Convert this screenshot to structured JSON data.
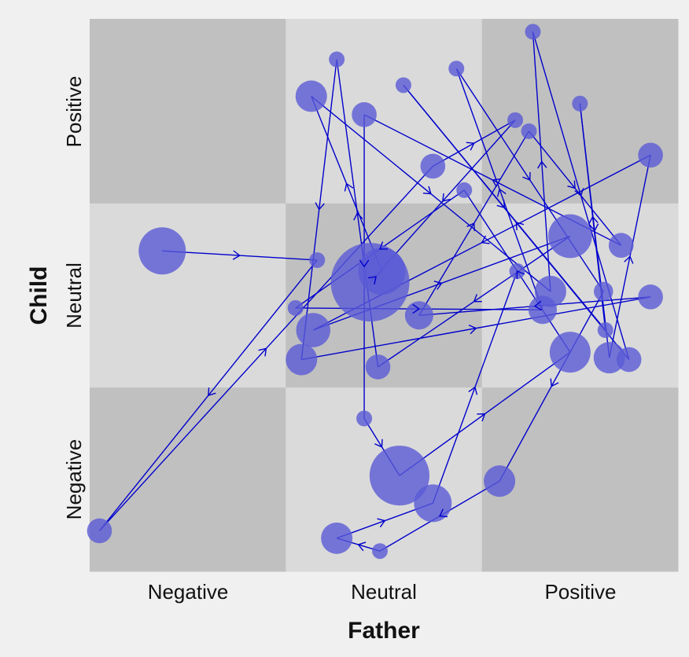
{
  "chart_data": {
    "type": "scatter",
    "subtype": "state-space-grid trajectory",
    "xlabel": "Father",
    "ylabel": "Child",
    "x_categories": [
      "Negative",
      "Neutral",
      "Positive"
    ],
    "y_categories": [
      "Negative",
      "Neutral",
      "Positive"
    ],
    "xlim": [
      0,
      3
    ],
    "ylim": [
      0,
      3
    ],
    "grid": "checkerboard cells",
    "colors": {
      "cell_dark": "#c0c0c0",
      "cell_light": "#dadada",
      "node": "#5a5ad6",
      "line": "#0000cc",
      "background": "#f0f0f0"
    },
    "points": [
      {
        "x": 0.37,
        "y": 1.74,
        "size": 36
      },
      {
        "x": 1.16,
        "y": 1.69,
        "size": 4
      },
      {
        "x": 0.05,
        "y": 0.22,
        "size": 10
      },
      {
        "x": 1.75,
        "y": 2.2,
        "size": 10
      },
      {
        "x": 2.17,
        "y": 2.45,
        "size": 4
      },
      {
        "x": 1.43,
        "y": 1.57,
        "size": 100
      },
      {
        "x": 1.49,
        "y": 1.63,
        "size": 36
      },
      {
        "x": 1.13,
        "y": 2.58,
        "size": 16
      },
      {
        "x": 2.35,
        "y": 1.52,
        "size": 16
      },
      {
        "x": 2.26,
        "y": 2.93,
        "size": 4
      },
      {
        "x": 2.75,
        "y": 1.15,
        "size": 10
      },
      {
        "x": 1.6,
        "y": 2.64,
        "size": 4
      },
      {
        "x": 2.63,
        "y": 1.31,
        "size": 4
      },
      {
        "x": 2.5,
        "y": 2.54,
        "size": 4
      },
      {
        "x": 2.65,
        "y": 1.16,
        "size": 16
      },
      {
        "x": 2.86,
        "y": 2.26,
        "size": 10
      },
      {
        "x": 1.14,
        "y": 1.31,
        "size": 19
      },
      {
        "x": 2.45,
        "y": 1.82,
        "size": 31
      },
      {
        "x": 1.47,
        "y": 1.11,
        "size": 10
      },
      {
        "x": 1.26,
        "y": 2.78,
        "size": 4
      },
      {
        "x": 1.08,
        "y": 1.15,
        "size": 16
      },
      {
        "x": 2.86,
        "y": 1.49,
        "size": 10
      },
      {
        "x": 1.68,
        "y": 1.39,
        "size": 13
      },
      {
        "x": 2.24,
        "y": 2.39,
        "size": 4
      },
      {
        "x": 2.71,
        "y": 1.77,
        "size": 10
      },
      {
        "x": 1.4,
        "y": 2.48,
        "size": 10
      },
      {
        "x": 1.4,
        "y": 0.83,
        "size": 4
      },
      {
        "x": 1.58,
        "y": 0.52,
        "size": 58
      },
      {
        "x": 2.45,
        "y": 1.19,
        "size": 27
      },
      {
        "x": 1.91,
        "y": 2.07,
        "size": 4
      },
      {
        "x": 1.05,
        "y": 1.43,
        "size": 4
      },
      {
        "x": 2.31,
        "y": 1.42,
        "size": 13
      },
      {
        "x": 1.87,
        "y": 2.73,
        "size": 4
      },
      {
        "x": 2.62,
        "y": 1.52,
        "size": 6
      },
      {
        "x": 2.09,
        "y": 0.49,
        "size": 16
      },
      {
        "x": 1.48,
        "y": 0.11,
        "size": 4
      },
      {
        "x": 1.26,
        "y": 0.18,
        "size": 16
      },
      {
        "x": 1.75,
        "y": 0.37,
        "size": 23
      },
      {
        "x": 2.18,
        "y": 1.63,
        "size": 4
      }
    ]
  }
}
